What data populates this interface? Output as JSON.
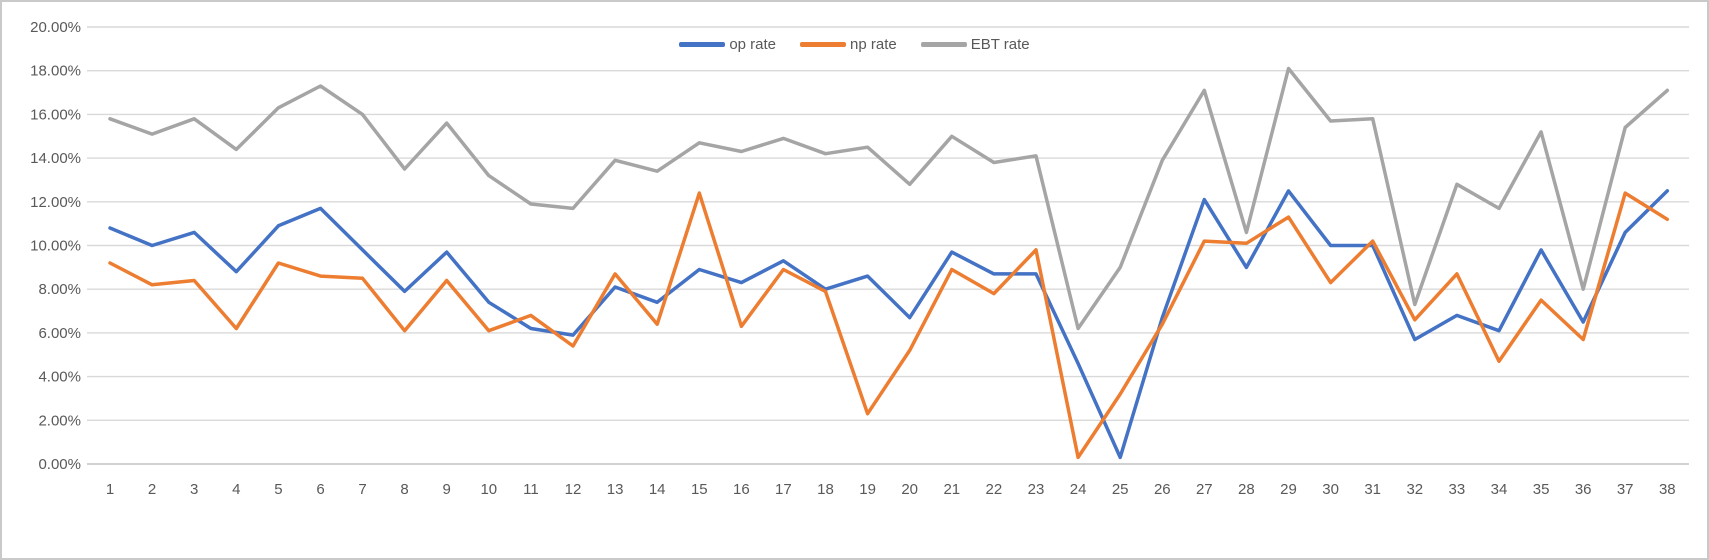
{
  "chart_data": {
    "type": "line",
    "title": "",
    "legend_position": "top",
    "grid": true,
    "categories": [
      1,
      2,
      3,
      4,
      5,
      6,
      7,
      8,
      9,
      10,
      11,
      12,
      13,
      14,
      15,
      16,
      17,
      18,
      19,
      20,
      21,
      22,
      23,
      24,
      25,
      26,
      27,
      28,
      29,
      30,
      31,
      32,
      33,
      34,
      35,
      36,
      37,
      38
    ],
    "x_axis": {
      "tick_labels": [
        "1",
        "2",
        "3",
        "4",
        "5",
        "6",
        "7",
        "8",
        "9",
        "10",
        "11",
        "12",
        "13",
        "14",
        "15",
        "16",
        "17",
        "18",
        "19",
        "20",
        "21",
        "22",
        "23",
        "24",
        "25",
        "26",
        "27",
        "28",
        "29",
        "30",
        "31",
        "32",
        "33",
        "34",
        "35",
        "36",
        "37",
        "38"
      ]
    },
    "y_axis": {
      "min": 0,
      "max": 20,
      "step": 2,
      "unit": "%",
      "tick_labels": [
        "0.00%",
        "2.00%",
        "4.00%",
        "6.00%",
        "8.00%",
        "10.00%",
        "12.00%",
        "14.00%",
        "16.00%",
        "18.00%",
        "20.00%"
      ]
    },
    "series": [
      {
        "name": "op rate",
        "color": "#4472C4",
        "values": [
          10.8,
          10.0,
          10.6,
          8.8,
          10.9,
          11.7,
          9.8,
          7.9,
          9.7,
          7.4,
          6.2,
          5.9,
          8.1,
          7.4,
          8.9,
          8.3,
          9.3,
          8.0,
          8.6,
          6.7,
          9.7,
          8.7,
          8.7,
          4.6,
          0.3,
          6.7,
          12.1,
          9.0,
          12.5,
          10.0,
          10.0,
          5.7,
          6.8,
          6.1,
          9.8,
          6.5,
          10.6,
          12.5
        ]
      },
      {
        "name": "np rate",
        "color": "#ED7D31",
        "values": [
          9.2,
          8.2,
          8.4,
          6.2,
          9.2,
          8.6,
          8.5,
          6.1,
          8.4,
          6.1,
          6.8,
          5.4,
          8.7,
          6.4,
          12.4,
          6.3,
          8.9,
          7.9,
          2.3,
          5.2,
          8.9,
          7.8,
          9.8,
          0.3,
          3.2,
          6.4,
          10.2,
          10.1,
          11.3,
          8.3,
          10.2,
          6.6,
          8.7,
          4.7,
          7.5,
          5.7,
          12.4,
          11.2
        ]
      },
      {
        "name": "EBT rate",
        "color": "#A5A5A5",
        "values": [
          15.8,
          15.1,
          15.8,
          14.4,
          16.3,
          17.3,
          16.0,
          13.5,
          15.6,
          13.2,
          11.9,
          11.7,
          13.9,
          13.4,
          14.7,
          14.3,
          14.9,
          14.2,
          14.5,
          12.8,
          15.0,
          13.8,
          14.1,
          6.2,
          9.0,
          13.9,
          17.1,
          10.6,
          18.1,
          15.7,
          15.8,
          7.3,
          12.8,
          11.7,
          15.2,
          8.0,
          15.4,
          17.1
        ]
      }
    ],
    "colors": {
      "gridline": "#D9D9D9",
      "axis_line": "#C4C4C4",
      "tick_text": "#595959",
      "frame_border": "#C9C9C9",
      "background": "#FFFFFF"
    }
  }
}
